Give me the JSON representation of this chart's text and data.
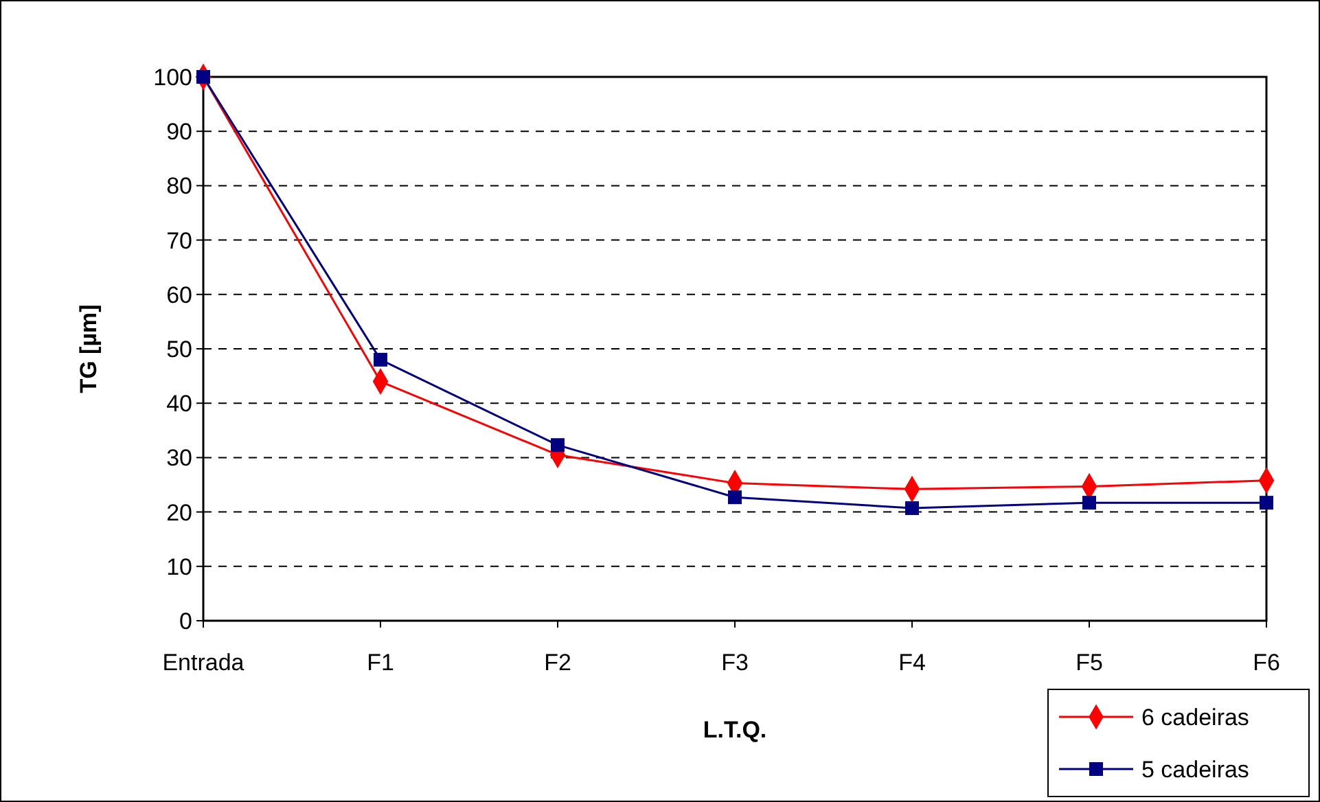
{
  "chart_data": {
    "type": "line",
    "xlabel": "L.T.Q.",
    "ylabel": "TG [µm]",
    "categories": [
      "Entrada",
      "F1",
      "F2",
      "F3",
      "F4",
      "F5",
      "F6"
    ],
    "series": [
      {
        "name": "6 cadeiras",
        "color": "#ff0000",
        "marker": "diamond",
        "values": [
          100,
          44,
          30.5,
          25.3,
          24.2,
          24.7,
          25.8
        ]
      },
      {
        "name": "5 cadeiras",
        "color": "#000080",
        "marker": "square",
        "values": [
          100,
          48,
          32.3,
          22.7,
          20.7,
          21.7,
          21.7
        ]
      }
    ],
    "ylim": [
      0,
      100
    ],
    "yticks": [
      0,
      10,
      20,
      30,
      40,
      50,
      60,
      70,
      80,
      90,
      100
    ],
    "grid": "y",
    "legend": "bottom right",
    "line_style": "solid"
  }
}
